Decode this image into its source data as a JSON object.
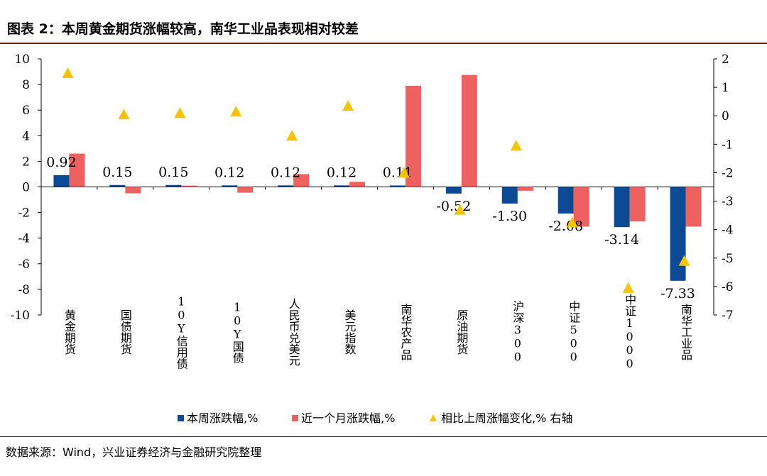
{
  "header": {
    "title": "图表 2：本周黄金期货涨幅较高，南华工业品表现相对较差"
  },
  "footer": {
    "source": "数据来源：Wind，兴业证券经济与金融研究院整理"
  },
  "colors": {
    "weekly": "#0d4a96",
    "monthly": "#ee6161",
    "change": "#f7c200"
  },
  "chart_data": {
    "type": "bar",
    "title": "本周黄金期货涨幅较高，南华工业品表现相对较差",
    "categories": [
      "黄金期货",
      "国债期货",
      "10Y信用债",
      "10Y国债",
      "人民币兑美元",
      "美元指数",
      "南华农产品",
      "原油期货",
      "沪深300",
      "中证500",
      "中证1000",
      "南华工业品"
    ],
    "series": [
      {
        "name": "本周涨跌幅,%",
        "type": "bar",
        "axis": "left",
        "values": [
          0.92,
          0.15,
          0.15,
          0.12,
          0.12,
          0.12,
          0.11,
          -0.52,
          -1.3,
          -2.08,
          -3.14,
          -7.33
        ],
        "labels": [
          "0.92",
          "0.15",
          "0.15",
          "0.12",
          "0.12",
          "0.12",
          "0.11",
          "-0.52",
          "-1.30",
          "-2.08",
          "-3.14",
          "-7.33"
        ]
      },
      {
        "name": "近一个月涨跌幅,%",
        "type": "bar",
        "axis": "left",
        "values": [
          2.6,
          -0.5,
          0.1,
          -0.45,
          1.0,
          0.4,
          7.9,
          8.75,
          -0.3,
          -3.1,
          -2.7,
          -3.1
        ]
      },
      {
        "name": "相比上周涨幅变化,% 右轴",
        "type": "scatter",
        "marker": "triangle",
        "axis": "right",
        "values": [
          1.5,
          0.05,
          0.1,
          0.15,
          -0.7,
          0.35,
          -2.0,
          -3.3,
          -1.05,
          -3.75,
          -6.05,
          -5.1
        ]
      }
    ],
    "ylim": [
      -10,
      10
    ],
    "yticks": [
      "10",
      "8",
      "6",
      "4",
      "2",
      "0",
      "-2",
      "-4",
      "-6",
      "-8",
      "-10"
    ],
    "y2lim": [
      -7,
      2
    ],
    "y2ticks": [
      "2",
      "1",
      "0",
      "-1",
      "-2",
      "-3",
      "-4",
      "-5",
      "-6",
      "-7"
    ],
    "legend": {
      "position": "bottom",
      "items": [
        "本周涨跌幅,%",
        "近一个月涨跌幅,%",
        "相比上周涨幅变化,% 右轴"
      ]
    }
  }
}
